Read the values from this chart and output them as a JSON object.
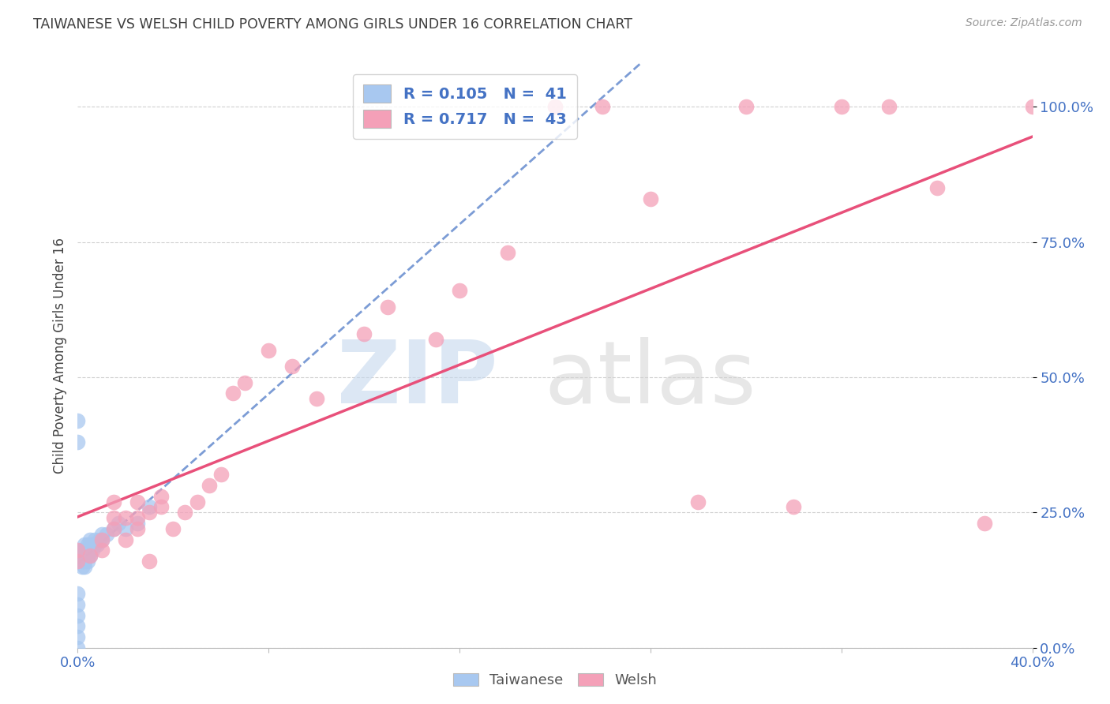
{
  "title": "TAIWANESE VS WELSH CHILD POVERTY AMONG GIRLS UNDER 16 CORRELATION CHART",
  "source": "Source: ZipAtlas.com",
  "ylabel": "Child Poverty Among Girls Under 16",
  "xlim": [
    0.0,
    0.4
  ],
  "ylim": [
    0.0,
    1.08
  ],
  "ytick_values": [
    0.0,
    0.25,
    0.5,
    0.75,
    1.0
  ],
  "ytick_labels": [
    "0.0%",
    "25.0%",
    "50.0%",
    "75.0%",
    "100.0%"
  ],
  "xtick_values": [
    0.0,
    0.08,
    0.16,
    0.24,
    0.32,
    0.4
  ],
  "xtick_labels": [
    "0.0%",
    "",
    "",
    "",
    "",
    "40.0%"
  ],
  "taiwanese_color": "#a8c8f0",
  "welsh_color": "#f4a0b8",
  "trendline_taiwanese_color": "#4472c4",
  "trendline_welsh_color": "#e8507a",
  "background_color": "#ffffff",
  "grid_color": "#d0d0d0",
  "axis_label_color": "#4472c4",
  "title_color": "#404040",
  "taiwanese_x": [
    0.0,
    0.0,
    0.0,
    0.0,
    0.0,
    0.0,
    0.0,
    0.0,
    0.002,
    0.002,
    0.002,
    0.002,
    0.002,
    0.002,
    0.003,
    0.003,
    0.003,
    0.003,
    0.003,
    0.004,
    0.004,
    0.004,
    0.004,
    0.005,
    0.005,
    0.005,
    0.005,
    0.006,
    0.006,
    0.007,
    0.007,
    0.008,
    0.009,
    0.01,
    0.01,
    0.012,
    0.015,
    0.017,
    0.02,
    0.025,
    0.03
  ],
  "taiwanese_y": [
    0.0,
    0.02,
    0.04,
    0.06,
    0.08,
    0.1,
    0.38,
    0.42,
    0.15,
    0.16,
    0.17,
    0.17,
    0.18,
    0.18,
    0.15,
    0.16,
    0.17,
    0.18,
    0.19,
    0.16,
    0.17,
    0.18,
    0.19,
    0.17,
    0.18,
    0.19,
    0.2,
    0.18,
    0.19,
    0.19,
    0.2,
    0.19,
    0.2,
    0.2,
    0.21,
    0.21,
    0.22,
    0.23,
    0.22,
    0.23,
    0.26
  ],
  "welsh_x": [
    0.0,
    0.0,
    0.005,
    0.01,
    0.01,
    0.015,
    0.015,
    0.015,
    0.02,
    0.02,
    0.025,
    0.025,
    0.025,
    0.03,
    0.03,
    0.035,
    0.035,
    0.04,
    0.045,
    0.05,
    0.055,
    0.06,
    0.065,
    0.07,
    0.08,
    0.09,
    0.1,
    0.12,
    0.13,
    0.15,
    0.16,
    0.18,
    0.2,
    0.22,
    0.24,
    0.26,
    0.28,
    0.3,
    0.32,
    0.34,
    0.36,
    0.38,
    0.4
  ],
  "welsh_y": [
    0.16,
    0.18,
    0.17,
    0.18,
    0.2,
    0.22,
    0.24,
    0.27,
    0.2,
    0.24,
    0.22,
    0.24,
    0.27,
    0.16,
    0.25,
    0.26,
    0.28,
    0.22,
    0.25,
    0.27,
    0.3,
    0.32,
    0.47,
    0.49,
    0.55,
    0.52,
    0.46,
    0.58,
    0.63,
    0.57,
    0.66,
    0.73,
    1.0,
    1.0,
    0.83,
    0.27,
    1.0,
    0.26,
    1.0,
    1.0,
    0.85,
    0.23,
    1.0
  ]
}
